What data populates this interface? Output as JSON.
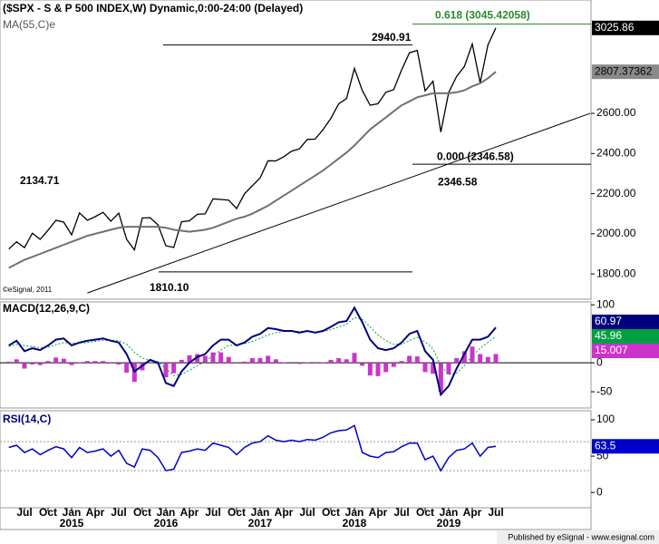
{
  "chart_data": [
    {
      "type": "line",
      "title": "($SPX - S & P 500 INDEX,W) Dynamic,0:00-24:00 (Delayed)",
      "copyright": "©eSignal, 2011",
      "x": [
        "2014-05",
        "2014-06",
        "2014-07",
        "2014-08",
        "2014-09",
        "2014-10",
        "2014-11",
        "2014-12",
        "2015-01",
        "2015-02",
        "2015-03",
        "2015-04",
        "2015-05",
        "2015-06",
        "2015-07",
        "2015-08",
        "2015-09",
        "2015-10",
        "2015-11",
        "2015-12",
        "2016-01",
        "2016-02",
        "2016-03",
        "2016-04",
        "2016-05",
        "2016-06",
        "2016-07",
        "2016-08",
        "2016-09",
        "2016-10",
        "2016-11",
        "2016-12",
        "2017-01",
        "2017-02",
        "2017-03",
        "2017-04",
        "2017-05",
        "2017-06",
        "2017-07",
        "2017-08",
        "2017-09",
        "2017-10",
        "2017-11",
        "2017-12",
        "2018-01",
        "2018-02",
        "2018-03",
        "2018-04",
        "2018-05",
        "2018-06",
        "2018-07",
        "2018-08",
        "2018-09",
        "2018-10",
        "2018-11",
        "2018-12",
        "2019-01",
        "2019-02",
        "2019-03",
        "2019-04",
        "2019-05",
        "2019-06",
        "2019-07"
      ],
      "series": [
        {
          "name": "$SPX",
          "color": "#000000",
          "values": [
            1924,
            1960,
            1931,
            2003,
            1972,
            2018,
            2067,
            2058,
            1995,
            2104,
            2067,
            2085,
            2107,
            2063,
            2103,
            1972,
            1920,
            2079,
            2080,
            2044,
            1940,
            1932,
            2060,
            2065,
            2097,
            2099,
            2174,
            2171,
            2168,
            2126,
            2199,
            2239,
            2279,
            2364,
            2363,
            2384,
            2412,
            2423,
            2470,
            2472,
            2519,
            2575,
            2648,
            2674,
            2824,
            2714,
            2641,
            2648,
            2705,
            2718,
            2816,
            2902,
            2914,
            2712,
            2760,
            2507,
            2704,
            2784,
            2834,
            2946,
            2752,
            2942,
            3025.86
          ]
        },
        {
          "name": "MA(55,C)e",
          "color": "#707070",
          "values": [
            1830,
            1850,
            1870,
            1885,
            1900,
            1915,
            1930,
            1945,
            1960,
            1975,
            1990,
            2000,
            2010,
            2020,
            2030,
            2035,
            2035,
            2035,
            2035,
            2035,
            2030,
            2020,
            2015,
            2010,
            2015,
            2020,
            2030,
            2045,
            2060,
            2075,
            2085,
            2100,
            2120,
            2140,
            2165,
            2190,
            2215,
            2240,
            2265,
            2290,
            2315,
            2345,
            2375,
            2405,
            2440,
            2480,
            2520,
            2550,
            2580,
            2610,
            2640,
            2660,
            2680,
            2690,
            2700,
            2700,
            2700,
            2705,
            2715,
            2735,
            2750,
            2775,
            2807.37362
          ]
        }
      ],
      "ylim": [
        1674,
        3165
      ],
      "yticks": [
        {
          "value": 1800,
          "label": "1800.00"
        },
        {
          "value": 2000,
          "label": "2000.00"
        },
        {
          "value": 2200,
          "label": "2200.00"
        },
        {
          "value": 2400,
          "label": "2400.00"
        },
        {
          "value": 2600,
          "label": "2600.00"
        }
      ],
      "levels": [
        {
          "label": "2940.91",
          "value": 2940.91
        },
        {
          "label": "0.618 (3045.42058)",
          "value": 3045.42058
        },
        {
          "label": "0.000 (2346.58)",
          "value": 2346.58
        },
        {
          "label": "1810.10",
          "value": 1810.1
        },
        {
          "label": "2346.58",
          "value": 2346.58
        },
        {
          "label": "2134.71",
          "value": 2134.71
        }
      ],
      "trendline": [
        {
          "x": "2015-03",
          "y": 1705
        },
        {
          "x": "2020-07",
          "y": 2600
        }
      ]
    },
    {
      "type": "macd",
      "title": "MACD(12,26,9,C)",
      "series": [
        {
          "name": "MACD",
          "color": "#000080",
          "values": [
            30,
            38,
            20,
            25,
            22,
            30,
            40,
            42,
            30,
            35,
            38,
            40,
            42,
            38,
            35,
            15,
            -15,
            -5,
            5,
            0,
            -35,
            -40,
            -15,
            0,
            10,
            15,
            30,
            40,
            40,
            30,
            35,
            45,
            50,
            60,
            58,
            55,
            55,
            52,
            55,
            52,
            55,
            62,
            70,
            72,
            95,
            70,
            40,
            25,
            22,
            25,
            35,
            50,
            55,
            20,
            5,
            -55,
            -40,
            -10,
            15,
            40,
            40,
            45,
            60.97
          ]
        },
        {
          "name": "Signal",
          "color": "#00a040",
          "values": [
            28,
            32,
            30,
            28,
            26,
            27,
            31,
            35,
            34,
            34,
            35,
            37,
            39,
            39,
            38,
            32,
            18,
            8,
            4,
            2,
            -10,
            -22,
            -20,
            -13,
            -5,
            3,
            12,
            22,
            30,
            31,
            33,
            37,
            42,
            48,
            52,
            54,
            55,
            54,
            54,
            53,
            54,
            57,
            62,
            66,
            78,
            75,
            62,
            48,
            38,
            32,
            32,
            38,
            44,
            36,
            24,
            -5,
            -20,
            -18,
            -5,
            12,
            25,
            35,
            45.96
          ]
        },
        {
          "name": "Histogram",
          "color": "#cc33cc",
          "values": [
            2,
            6,
            -10,
            -3,
            -4,
            3,
            9,
            7,
            -4,
            1,
            3,
            3,
            3,
            -1,
            -3,
            -17,
            -33,
            -13,
            1,
            -2,
            -25,
            -18,
            5,
            13,
            15,
            12,
            18,
            18,
            10,
            -1,
            2,
            8,
            8,
            12,
            6,
            1,
            0,
            -2,
            1,
            -1,
            1,
            5,
            8,
            6,
            17,
            -5,
            -22,
            -23,
            -16,
            -7,
            3,
            12,
            11,
            -16,
            -19,
            -50,
            -20,
            8,
            20,
            28,
            15,
            10,
            15.007
          ]
        }
      ],
      "ylim": [
        -78,
        105
      ],
      "yticks": [
        100,
        0,
        -50
      ]
    },
    {
      "type": "rsi",
      "title": "RSI(14,C)",
      "series": [
        {
          "name": "RSI",
          "color": "#0000cc",
          "values": [
            62,
            65,
            55,
            60,
            52,
            58,
            63,
            60,
            48,
            62,
            55,
            57,
            60,
            50,
            58,
            40,
            35,
            60,
            58,
            48,
            30,
            32,
            55,
            57,
            60,
            58,
            68,
            65,
            62,
            52,
            62,
            68,
            70,
            78,
            72,
            70,
            72,
            70,
            73,
            72,
            76,
            82,
            85,
            86,
            92,
            55,
            50,
            48,
            55,
            56,
            63,
            68,
            68,
            45,
            50,
            30,
            48,
            58,
            60,
            68,
            50,
            62,
            63.5
          ]
        }
      ],
      "ylim": [
        -21,
        112.5
      ],
      "yticks": [
        100,
        50,
        0
      ],
      "guides": [
        70,
        30
      ],
      "xticks": [
        {
          "value": "2014-07",
          "label": "Jul"
        },
        {
          "value": "2014-10",
          "label": "Oct"
        },
        {
          "value": "2015-01",
          "label": "Jan"
        },
        {
          "value": "2015-04",
          "label": "Apr"
        },
        {
          "value": "2015-07",
          "label": "Jul"
        },
        {
          "value": "2015-10",
          "label": "Oct"
        },
        {
          "value": "2016-01",
          "label": "Jan"
        },
        {
          "value": "2016-04",
          "label": "Apr"
        },
        {
          "value": "2016-07",
          "label": "Jul"
        },
        {
          "value": "2016-10",
          "label": "Oct"
        },
        {
          "value": "2017-01",
          "label": "Jan"
        },
        {
          "value": "2017-04",
          "label": "Apr"
        },
        {
          "value": "2017-07",
          "label": "Jul"
        },
        {
          "value": "2017-10",
          "label": "Oct"
        },
        {
          "value": "2018-01",
          "label": "Jan"
        },
        {
          "value": "2018-04",
          "label": "Apr"
        },
        {
          "value": "2018-07",
          "label": "Jul"
        },
        {
          "value": "2018-10",
          "label": "Oct"
        },
        {
          "value": "2019-01",
          "label": "Jan"
        },
        {
          "value": "2019-04",
          "label": "Apr"
        },
        {
          "value": "2019-07",
          "label": "Jul"
        }
      ],
      "year_labels": [
        {
          "value": "2015-01",
          "label": "2015"
        },
        {
          "value": "2016-01",
          "label": "2016"
        },
        {
          "value": "2017-01",
          "label": "2017"
        },
        {
          "value": "2018-01",
          "label": "2018"
        },
        {
          "value": "2019-01",
          "label": "2019"
        }
      ]
    }
  ],
  "footer": "Published by eSignal - www.esignal.com"
}
